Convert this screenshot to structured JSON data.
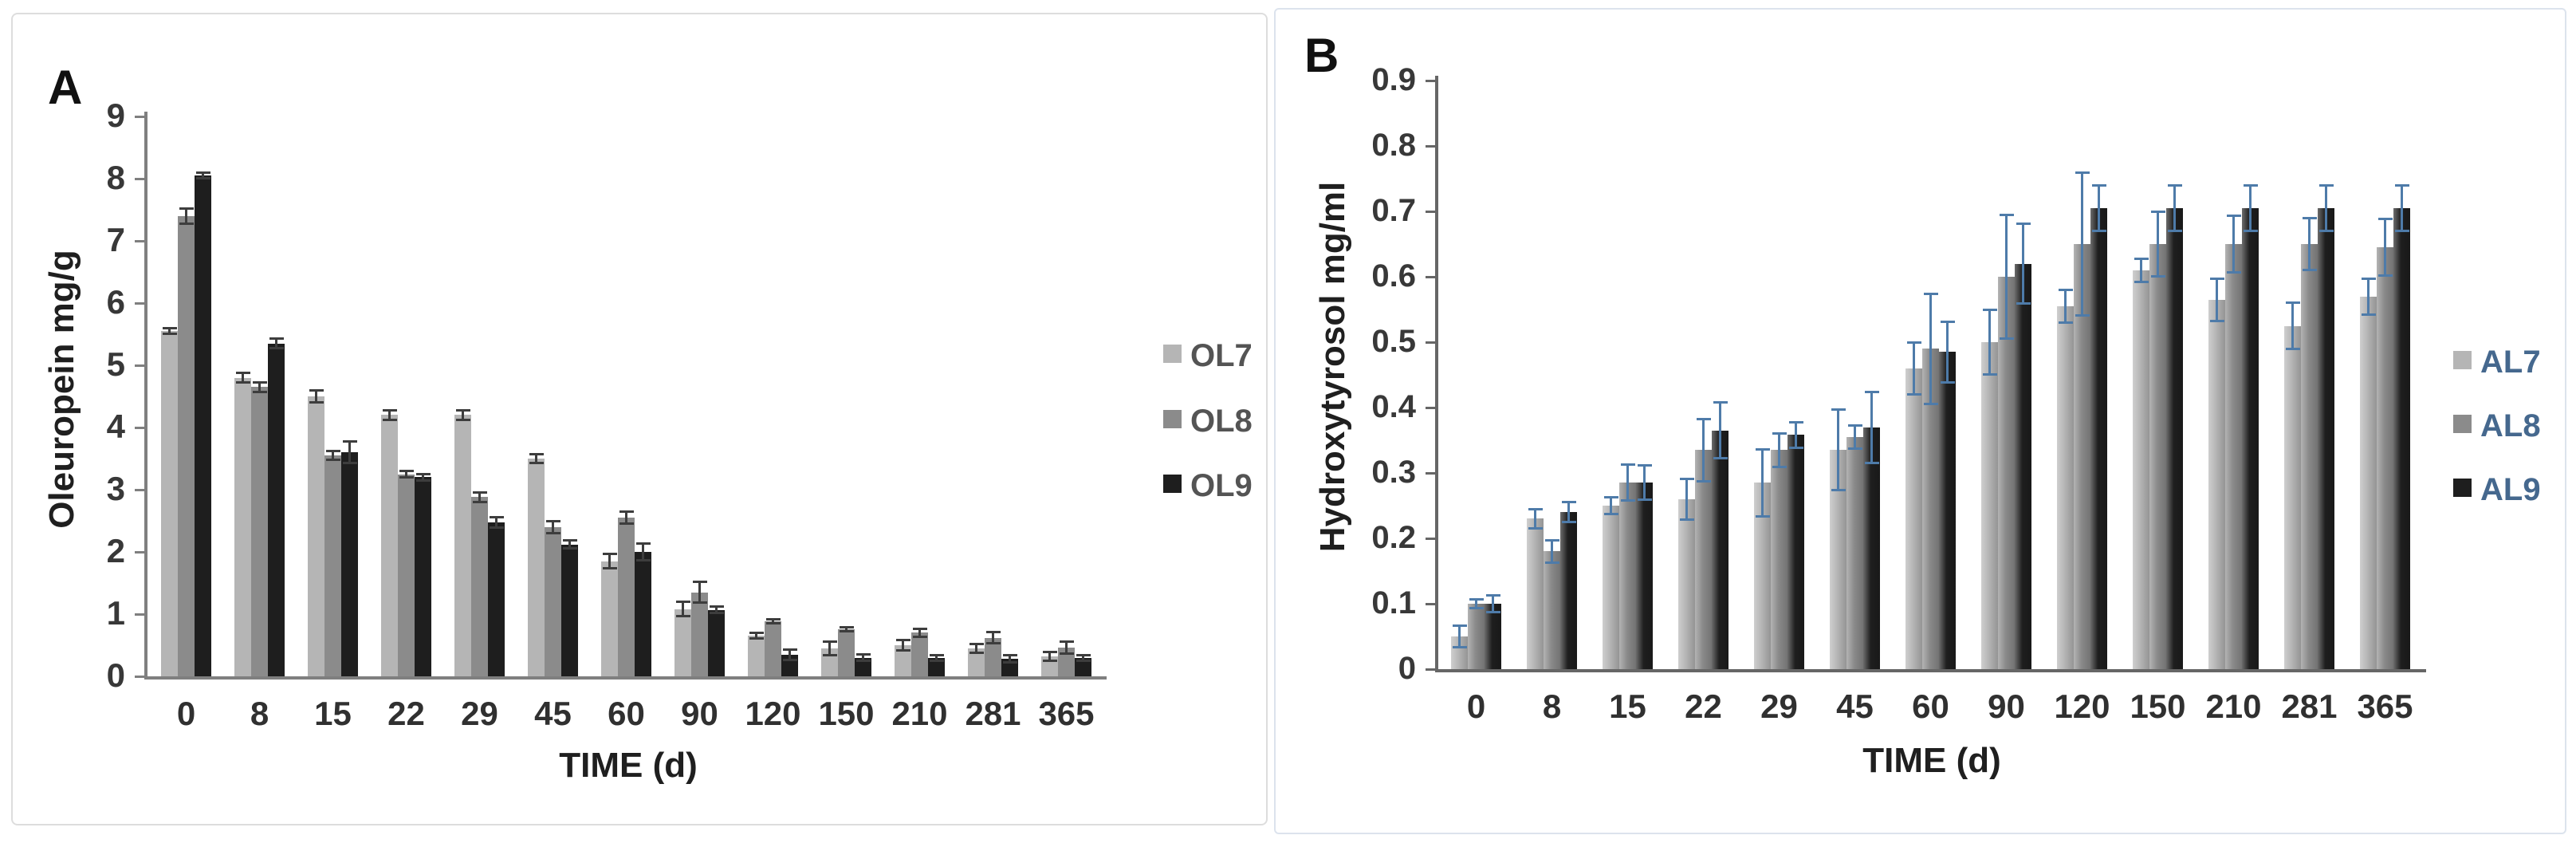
{
  "chart_data": [
    {
      "type": "bar",
      "panel_label": "A",
      "title": "",
      "xlabel": "TIME (d)",
      "ylabel": "Oleuropein mg/g",
      "categories": [
        "0",
        "8",
        "15",
        "22",
        "29",
        "45",
        "60",
        "90",
        "120",
        "150",
        "210",
        "281",
        "365"
      ],
      "ylim": [
        0,
        9
      ],
      "ytick_step": 1,
      "ytick_decimals": 0,
      "grid": false,
      "legend_position": "right",
      "error_bar_color": "#3d3d3d",
      "legend_text_color": "#545454",
      "series": [
        {
          "name": "OL7",
          "color": "#b5b5b5",
          "values": [
            5.55,
            4.8,
            4.5,
            4.2,
            4.2,
            3.5,
            1.85,
            1.08,
            0.65,
            0.45,
            0.5,
            0.45,
            0.32
          ],
          "errors": [
            0.05,
            0.08,
            0.1,
            0.08,
            0.08,
            0.08,
            0.12,
            0.12,
            0.05,
            0.12,
            0.09,
            0.08,
            0.08
          ]
        },
        {
          "name": "OL8",
          "color": "#8b8b8b",
          "values": [
            7.4,
            4.65,
            3.55,
            3.25,
            2.88,
            2.4,
            2.55,
            1.35,
            0.88,
            0.76,
            0.7,
            0.62,
            0.46
          ],
          "errors": [
            0.13,
            0.08,
            0.08,
            0.06,
            0.08,
            0.1,
            0.1,
            0.17,
            0.04,
            0.04,
            0.07,
            0.1,
            0.1
          ]
        },
        {
          "name": "OL9",
          "color": "#1e1e1e",
          "values": [
            8.05,
            5.35,
            3.6,
            3.2,
            2.47,
            2.12,
            2.0,
            1.07,
            0.35,
            0.3,
            0.3,
            0.28,
            0.3
          ],
          "errors": [
            0.05,
            0.08,
            0.18,
            0.06,
            0.09,
            0.07,
            0.14,
            0.06,
            0.09,
            0.06,
            0.05,
            0.06,
            0.05
          ]
        }
      ]
    },
    {
      "type": "bar",
      "panel_label": "B",
      "title": "",
      "xlabel": "TIME (d)",
      "ylabel": "Hydroxytyrosol mg/ml",
      "categories": [
        "0",
        "8",
        "15",
        "22",
        "29",
        "45",
        "60",
        "90",
        "120",
        "150",
        "210",
        "281",
        "365"
      ],
      "ylim": [
        0,
        0.9
      ],
      "ytick_step": 0.1,
      "ytick_decimals": 1,
      "grid": false,
      "legend_position": "right",
      "error_bar_color": "#4e7ba9",
      "legend_text_color": "#45688e",
      "series": [
        {
          "name": "AL7",
          "color": "#b5b5b5",
          "values": [
            0.05,
            0.23,
            0.25,
            0.26,
            0.285,
            0.335,
            0.46,
            0.5,
            0.555,
            0.61,
            0.565,
            0.525,
            0.57
          ],
          "errors": [
            0.017,
            0.015,
            0.013,
            0.032,
            0.052,
            0.062,
            0.04,
            0.05,
            0.026,
            0.018,
            0.033,
            0.036,
            0.028
          ]
        },
        {
          "name": "AL8",
          "color": "#8b8b8b",
          "values": [
            0.1,
            0.18,
            0.285,
            0.335,
            0.335,
            0.355,
            0.49,
            0.6,
            0.65,
            0.65,
            0.65,
            0.65,
            0.645
          ],
          "errors": [
            0.007,
            0.018,
            0.028,
            0.048,
            0.026,
            0.018,
            0.085,
            0.095,
            0.11,
            0.05,
            0.044,
            0.04,
            0.044
          ]
        },
        {
          "name": "AL9",
          "color": "#1e1e1e",
          "values": [
            0.1,
            0.24,
            0.285,
            0.365,
            0.358,
            0.37,
            0.485,
            0.62,
            0.705,
            0.705,
            0.705,
            0.705,
            0.705
          ],
          "errors": [
            0.013,
            0.016,
            0.027,
            0.043,
            0.02,
            0.055,
            0.047,
            0.062,
            0.035,
            0.035,
            0.035,
            0.035,
            0.035
          ]
        }
      ]
    }
  ]
}
